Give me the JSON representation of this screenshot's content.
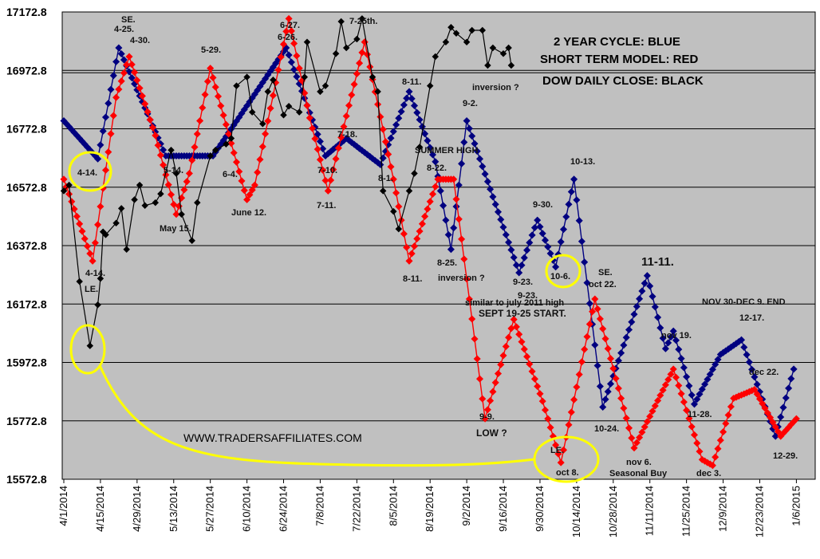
{
  "chart_data": {
    "type": "line",
    "title": "",
    "xlabel": "",
    "ylabel": "",
    "ylim": [
      15572.8,
      17172.8
    ],
    "y_ticks": [
      "17172.8",
      "16972.8",
      "16772.8",
      "16572.8",
      "16372.8",
      "16172.8",
      "15972.8",
      "15772.8",
      "15572.8"
    ],
    "x_ticks": [
      "4/1/2014",
      "4/15/2014",
      "4/29/2014",
      "5/13/2014",
      "5/27/2014",
      "6/10/2014",
      "6/24/2014",
      "7/8/2014",
      "7/22/2014",
      "8/5/2014",
      "8/19/2014",
      "9/2/2014",
      "9/16/2014",
      "9/30/2014",
      "10/14/2014",
      "10/28/2014",
      "11/11/2014",
      "11/25/2014",
      "12/9/2014",
      "12/23/2014",
      "1/6/2015"
    ],
    "grid": "horizontal",
    "background": "#c0c0c0",
    "legend_lines": [
      "2 YEAR CYCLE: BLUE",
      "SHORT TERM MODEL: RED",
      "DOW DAILY CLOSE: BLACK"
    ],
    "series": [
      {
        "color": "#000080",
        "x": [
          "4/1/2014",
          "4/14/2014",
          "4/22/2014",
          "5/10/2014",
          "5/28/2014",
          "6/25/2014",
          "7/10/2014",
          "7/18/2014",
          "7/31/2014",
          "8/11/2014",
          "8/21/2014",
          "8/27/2014",
          "9/2/2014",
          "9/22/2014",
          "9/29/2014",
          "10/6/2014",
          "10/13/2014",
          "10/24/2014",
          "11/10/2014",
          "11/17/2014",
          "11/20/2014",
          "11/28/2014",
          "12/8/2014",
          "12/16/2014",
          "12/29/2014",
          "1/5/2015"
        ],
        "values": [
          16800,
          16670,
          17050,
          16680,
          16680,
          17050,
          16680,
          16740,
          16650,
          16900,
          16660,
          16360,
          16800,
          16280,
          16460,
          16300,
          16600,
          15820,
          16270,
          16020,
          16080,
          15830,
          16000,
          16050,
          15720,
          15950
        ]
      },
      {
        "color": "#ff0000",
        "x": [
          "4/1/2014",
          "4/12/2014",
          "4/21/2014",
          "4/26/2014",
          "5/6/2014",
          "5/14/2014",
          "5/19/2014",
          "5/27/2014",
          "6/10/2014",
          "6/13/2014",
          "6/26/2014",
          "7/4/2014",
          "7/11/2014",
          "7/17/2014",
          "7/25/2014",
          "8/5/2014",
          "8/11/2014",
          "8/22/2014",
          "8/28/2014",
          "9/9/2014",
          "9/20/2014",
          "10/1/2014",
          "10/8/2014",
          "10/21/2014",
          "11/5/2014",
          "11/20/2014",
          "12/1/2014",
          "12/5/2014",
          "12/13/2014",
          "12/21/2014",
          "12/31/2014",
          "1/6/2015"
        ],
        "values": [
          16600,
          16320,
          16880,
          17020,
          16750,
          16480,
          16620,
          16980,
          16530,
          16580,
          17150,
          16810,
          16560,
          16780,
          17070,
          16600,
          16320,
          16600,
          16600,
          15780,
          16120,
          15840,
          15630,
          16190,
          15680,
          15950,
          15640,
          15620,
          15850,
          15880,
          15720,
          15780
        ]
      },
      {
        "color": "#000000",
        "x": [
          "4/1/2014",
          "4/3/2014",
          "4/7/2014",
          "4/11/2014",
          "4/14/2014",
          "4/15/2014",
          "4/16/2014",
          "4/17/2014",
          "4/21/2014",
          "4/23/2014",
          "4/25/2014",
          "4/28/2014",
          "4/30/2014",
          "5/2/2014",
          "5/6/2014",
          "5/8/2014",
          "5/12/2014",
          "5/14/2014",
          "5/16/2014",
          "5/20/2014",
          "5/22/2014",
          "5/27/2014",
          "5/29/2014",
          "6/2/2014",
          "6/4/2014",
          "6/6/2014",
          "6/10/2014",
          "6/12/2014",
          "6/16/2014",
          "6/18/2014",
          "6/20/2014",
          "6/24/2014",
          "6/26/2014",
          "6/30/2014",
          "7/2/2014",
          "7/3/2014",
          "7/8/2014",
          "7/10/2014",
          "7/14/2014",
          "7/16/2014",
          "7/18/2014",
          "7/22/2014",
          "7/24/2014",
          "7/28/2014",
          "7/30/2014",
          "8/1/2014",
          "8/5/2014",
          "8/7/2014",
          "8/11/2014",
          "8/13/2014",
          "8/15/2014",
          "8/19/2014",
          "8/21/2014",
          "8/25/2014",
          "8/27/2014",
          "8/29/2014",
          "9/2/2014",
          "9/4/2014",
          "9/8/2014",
          "9/10/2014",
          "9/12/2014",
          "9/16/2014",
          "9/18/2014",
          "9/19/2014"
        ],
        "values": [
          16560,
          16580,
          16250,
          16030,
          16170,
          16260,
          16420,
          16410,
          16450,
          16500,
          16360,
          16530,
          16580,
          16510,
          16520,
          16550,
          16700,
          16620,
          16480,
          16390,
          16520,
          16680,
          16700,
          16720,
          16740,
          16920,
          16950,
          16830,
          16790,
          16900,
          16940,
          16820,
          16850,
          16830,
          16950,
          17070,
          16900,
          16920,
          17030,
          17140,
          17050,
          17080,
          17150,
          16950,
          16900,
          16560,
          16490,
          16430,
          16560,
          16620,
          16710,
          16920,
          17020,
          17070,
          17120,
          17100,
          17070,
          17110,
          17110,
          16990,
          17050,
          17030,
          17050,
          16990
        ]
      }
    ],
    "annotations": {
      "blue_4_25": "4-25.",
      "blue_se_1": "SE.",
      "red_4_30": "4-30.",
      "yellow_4_14": "4-14.",
      "red_4_14": "4-14.",
      "le_1": "LE.",
      "blue_5_14": "5-14.",
      "may_15": "May 15.",
      "red_5_29": "5-29.",
      "red_6_4": "6-4.",
      "june_12": "June 12.",
      "red_6_27": "6-27.",
      "blue_6_26": "6-26.",
      "black_7_25": "7-25th.",
      "blue_7_18": "7-18.",
      "red_7_10": "7-10.",
      "red_7_11": "7-11.",
      "blue_8_1": "8-1.",
      "blue_8_11": "8-11.",
      "summer_high": "SUMMER HIGH",
      "red_8_22": "8-22.",
      "red_8_11": "8-11.",
      "red_8_25": "8-25.",
      "inversion_1": "inversion ?",
      "inversion_2": "inversion ?",
      "blue_9_2": "9-2.",
      "blue_9_30": "9-30.",
      "blue_9_23": "9-23.",
      "blue_9_23b": "9-23.",
      "similar": "similar to july 2011 high",
      "sept_start": "SEPT 19-25 START.",
      "red_9_9": "9-9.",
      "low_q": "LOW ?",
      "yellow_10_6": "10-6.",
      "blue_10_13": "10-13.",
      "se_2": "SE.",
      "oct_22": "oct 22.",
      "le_2": "LE.",
      "oct_8": "oct 8.",
      "blue_10_24": "10-24.",
      "blue_11_11": "11-11.",
      "nov_19": "nov 19.",
      "nov_6": "nov 6.",
      "seasonal_buy": "Seasonal Buy",
      "blue_11_28": "11-28.",
      "dec_3": "dec 3.",
      "nov30_dec9": "NOV 30-DEC 9. END",
      "blue_12_17": "12-17.",
      "dec_22": "dec 22.",
      "blue_12_29": "12-29.",
      "website": "WWW.TRADERSAFFILIATES.COM"
    }
  }
}
